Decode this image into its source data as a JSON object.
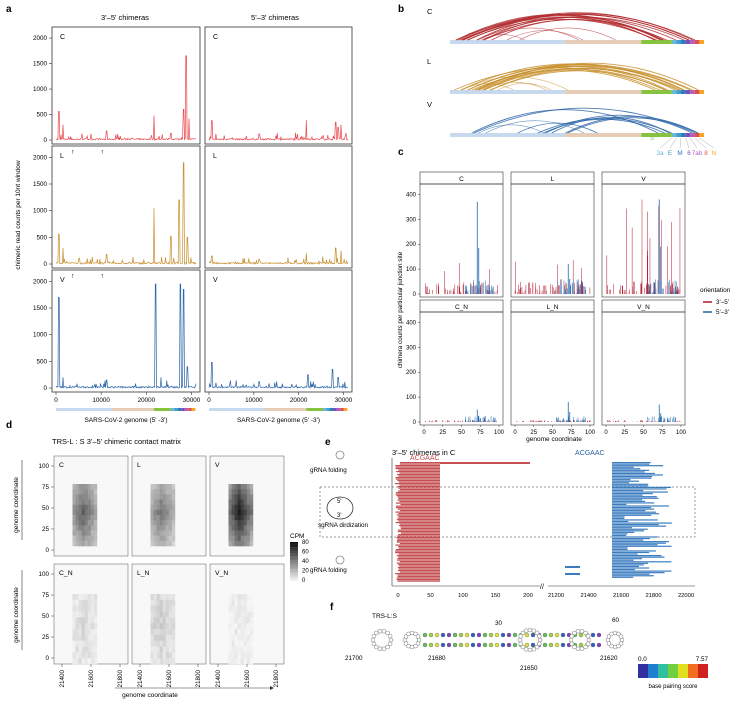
{
  "panels": {
    "a": "a",
    "b": "b",
    "c": "c",
    "d": "d",
    "e": "e",
    "f": "f"
  },
  "panel_a": {
    "col_titles": [
      "3'–5' chimeras",
      "5'–3' chimeras"
    ],
    "row_labels": [
      "C",
      "L",
      "V"
    ],
    "ylabel": "chimeric read counts per 10nt window",
    "yticks": [
      "0",
      "500",
      "1000",
      "1500",
      "2000"
    ],
    "xticks": [
      "0",
      "10000",
      "20000",
      "30000"
    ],
    "xlabel": "SARS-CoV-2 genome (5' -3')",
    "colors": {
      "C": "#e8484f",
      "L": "#c8902e",
      "V": "#2b64a8"
    }
  },
  "panel_b": {
    "row_labels": [
      "C",
      "L",
      "V"
    ],
    "genes": [
      "S",
      "3a",
      "E",
      "M",
      "6",
      "7ab",
      "8",
      "N"
    ],
    "gene_colors": [
      "#86c440",
      "#6ab8d8",
      "#3fa0d0",
      "#2b7bc0",
      "#7b4fb4",
      "#b35fc0",
      "#e0504a",
      "#f5a623"
    ]
  },
  "chart_data": {
    "type": "line",
    "title": "chimera counts per particular junction site",
    "facets": [
      "C",
      "L",
      "V",
      "C_N",
      "L_N",
      "V_N"
    ],
    "xlabel": "genome coordinate",
    "ylabel": "chimera counts per particular junction site",
    "xticks": [
      "0",
      "25",
      "50",
      "75",
      "100"
    ],
    "yticks": [
      "0",
      "100",
      "200",
      "300",
      "400"
    ],
    "ylim": [
      0,
      430
    ],
    "legend_title": "orientation",
    "series": [
      {
        "name": "3'–5'",
        "color": "#b2182b",
        "peaks": [
          [
            1,
            5,
            40
          ],
          [
            20,
            45,
            30
          ],
          [
            60,
            85,
            25
          ]
        ]
      },
      {
        "name": "5'–3'",
        "color": "#2166ac",
        "peaks": [
          [
            1,
            70,
            370
          ],
          [
            2,
            75,
            380
          ],
          [
            4,
            70,
            70
          ],
          [
            5,
            72,
            80
          ]
        ]
      }
    ]
  },
  "panel_d": {
    "title": "TRS-L : S 3'–5' chimeric contact matrix",
    "facets": [
      "C",
      "L",
      "V",
      "C_N",
      "L_N",
      "V_N"
    ],
    "yticks": [
      "0",
      "25",
      "50",
      "75",
      "100"
    ],
    "xticks": [
      "21400",
      "21600",
      "21800"
    ],
    "ylabel": "genome coordinate",
    "xlabel": "genome coordinate",
    "legend_title": "CPM",
    "legend_ticks": [
      "0",
      "20",
      "40",
      "60",
      "80"
    ]
  },
  "panel_e": {
    "title": "3'–5' chimeras in C",
    "seq_left": "ACGAAC",
    "seq_right": "ACGAAC",
    "labels": [
      "gRNA folding",
      "sgRNA dirdization",
      "gRNA folding"
    ],
    "xticks_left": [
      "0",
      "50",
      "100",
      "150",
      "200"
    ],
    "xticks_right": [
      "21200",
      "21400",
      "21600",
      "21800",
      "22000"
    ]
  },
  "panel_f": {
    "label": "TRS-L:S",
    "pos": [
      "30",
      "60",
      "21700",
      "21680",
      "21650",
      "21620"
    ],
    "legend_min": "0.0",
    "legend_max": "7.57",
    "legend_title": "base pairing score"
  }
}
